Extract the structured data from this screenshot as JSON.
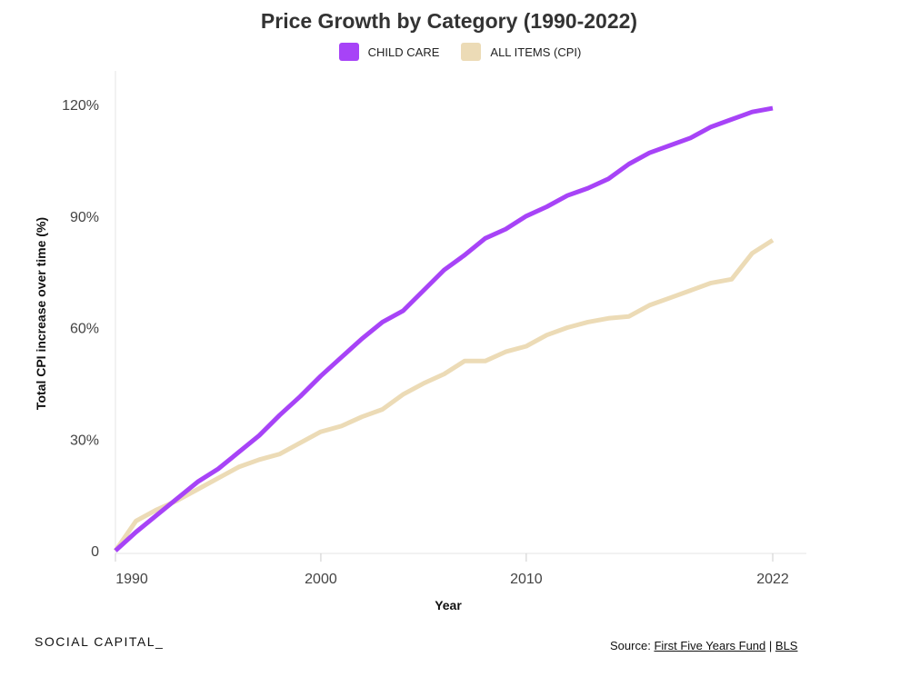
{
  "chart_data": {
    "type": "line",
    "title": "Price Growth by Category (1990-2022)",
    "xlabel": "Year",
    "ylabel": "Total CPI increase over time (%)",
    "xlim": [
      1990,
      2023
    ],
    "ylim": [
      -2,
      128
    ],
    "x_ticks": [
      {
        "value": 1990,
        "label": "1990"
      },
      {
        "value": 2000,
        "label": "2000"
      },
      {
        "value": 2010,
        "label": "2010"
      },
      {
        "value": 2022,
        "label": "2022"
      }
    ],
    "y_ticks": [
      {
        "value": 0,
        "label": "0"
      },
      {
        "value": 30,
        "label": "30%"
      },
      {
        "value": 60,
        "label": "60%"
      },
      {
        "value": 90,
        "label": "90%"
      },
      {
        "value": 120,
        "label": "120%"
      }
    ],
    "x": [
      1990,
      1991,
      1992,
      1993,
      1994,
      1995,
      1996,
      1997,
      1998,
      1999,
      2000,
      2001,
      2002,
      2003,
      2004,
      2005,
      2006,
      2007,
      2008,
      2009,
      2010,
      2011,
      2012,
      2013,
      2014,
      2015,
      2016,
      2017,
      2018,
      2019,
      2020,
      2021,
      2022
    ],
    "series": [
      {
        "name": "CHILD CARE",
        "color": "#a743f7",
        "values": [
          0,
          5,
          9.5,
          14,
          18.5,
          22,
          26.5,
          31,
          36.5,
          41.5,
          47,
          52,
          57,
          61.5,
          64.5,
          70,
          75.5,
          79.5,
          84,
          86.5,
          90,
          92.5,
          95.5,
          97.5,
          100,
          104,
          107,
          109,
          111,
          114,
          116,
          118,
          119
        ]
      },
      {
        "name": "ALL ITEMS (CPI)",
        "color": "#ecdbb6",
        "values": [
          0,
          8,
          11,
          13.5,
          16.5,
          19.5,
          22.5,
          24.5,
          26,
          29,
          32,
          33.5,
          36,
          38,
          42,
          45,
          47.5,
          51,
          51,
          53.5,
          55,
          58,
          60,
          61.5,
          62.5,
          63,
          66,
          68,
          70,
          72,
          73,
          80,
          83.5
        ]
      }
    ],
    "legend": "top-center",
    "grid": false
  },
  "branding": {
    "logo_text": "SOCIAL CAPITAL_"
  },
  "source": {
    "prefix": "Source:",
    "link1": "First Five Years Fund",
    "separator": "|",
    "link2": "BLS"
  }
}
